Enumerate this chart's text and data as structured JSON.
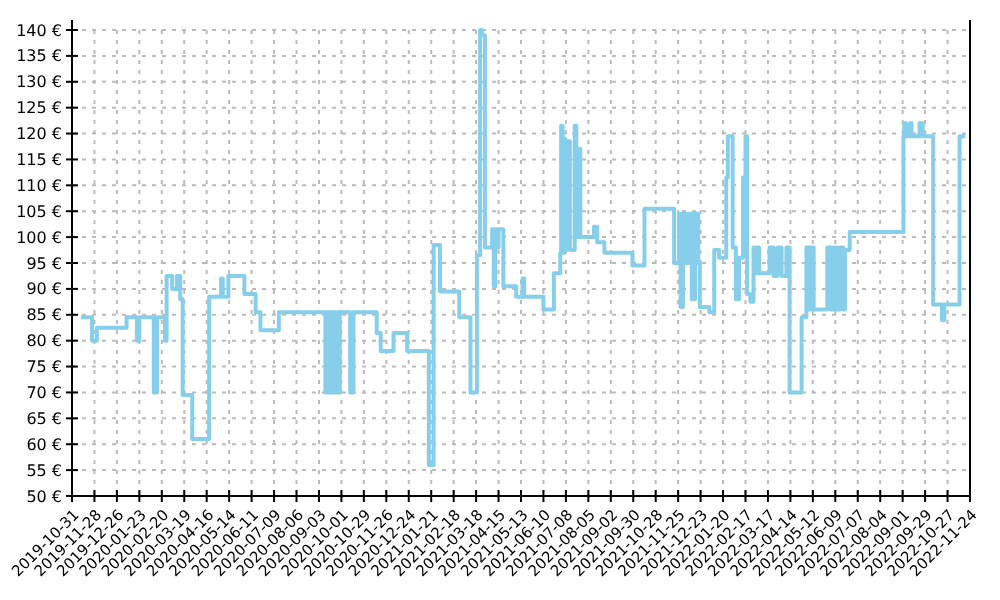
{
  "chart_data": {
    "type": "step",
    "color": "#87ceeb",
    "grid": true,
    "x": [
      "2019-11-11",
      "2019-11-25",
      "2019-12-01",
      "2020-01-07",
      "2020-01-20",
      "2020-01-23",
      "2020-02-10",
      "2020-02-14",
      "2020-02-24",
      "2020-02-26",
      "2020-03-04",
      "2020-03-10",
      "2020-03-14",
      "2020-03-17",
      "2020-03-29",
      "2020-04-19",
      "2020-05-04",
      "2020-05-06",
      "2020-05-13",
      "2020-06-02",
      "2020-06-16",
      "2020-06-22",
      "2020-07-15",
      "2020-09-11",
      "2020-09-13",
      "2020-09-15",
      "2020-09-17",
      "2020-09-19",
      "2020-09-21",
      "2020-09-23",
      "2020-09-25",
      "2020-09-27",
      "2020-09-29",
      "2020-10-12",
      "2020-10-16",
      "2020-11-14",
      "2020-11-19",
      "2020-12-05",
      "2020-12-22",
      "2021-01-18",
      "2021-01-24",
      "2021-02-01",
      "2021-02-25",
      "2021-03-11",
      "2021-03-19",
      "2021-03-23",
      "2021-03-25",
      "2021-03-29",
      "2021-04-07",
      "2021-04-09",
      "2021-04-11",
      "2021-04-13",
      "2021-04-15",
      "2021-04-21",
      "2021-05-07",
      "2021-05-15",
      "2021-05-17",
      "2021-06-10",
      "2021-06-23",
      "2021-07-01",
      "2021-07-02",
      "2021-07-04",
      "2021-07-06",
      "2021-07-07",
      "2021-07-09",
      "2021-07-13",
      "2021-07-19",
      "2021-07-21",
      "2021-07-22",
      "2021-07-24",
      "2021-07-26",
      "2021-08-12",
      "2021-08-16",
      "2021-08-25",
      "2021-09-29",
      "2021-10-14",
      "2021-11-20",
      "2021-11-26",
      "2021-11-28",
      "2021-12-01",
      "2021-12-05",
      "2021-12-08",
      "2021-12-12",
      "2021-12-16",
      "2021-12-20",
      "2021-12-22",
      "2022-01-03",
      "2022-01-09",
      "2022-01-15",
      "2022-01-24",
      "2022-01-26",
      "2022-02-01",
      "2022-02-05",
      "2022-02-09",
      "2022-02-14",
      "2022-02-17",
      "2022-02-19",
      "2022-02-23",
      "2022-02-27",
      "2022-03-01",
      "2022-03-04",
      "2022-03-06",
      "2022-03-19",
      "2022-03-24",
      "2022-03-29",
      "2022-04-03",
      "2022-04-09",
      "2022-04-13",
      "2022-04-28",
      "2022-05-04",
      "2022-05-07",
      "2022-05-09",
      "2022-05-13",
      "2022-05-30",
      "2022-06-03",
      "2022-06-07",
      "2022-06-11",
      "2022-06-15",
      "2022-06-19",
      "2022-06-21",
      "2022-06-27",
      "2022-09-02",
      "2022-09-03",
      "2022-09-05",
      "2022-09-10",
      "2022-09-12",
      "2022-09-22",
      "2022-09-26",
      "2022-10-09",
      "2022-10-20",
      "2022-10-23",
      "2022-11-11",
      "2022-11-18"
    ],
    "values": [
      84.5,
      80,
      82.5,
      84.5,
      80,
      84.5,
      70,
      84.5,
      80,
      92.5,
      90,
      92.5,
      88,
      69.5,
      61,
      88.5,
      92,
      88.5,
      92.5,
      89,
      85.5,
      82,
      85.5,
      70,
      85.5,
      70,
      85.5,
      70,
      85.5,
      70,
      85.5,
      70,
      85.5,
      70,
      85.5,
      81.5,
      78,
      81.5,
      78,
      56,
      98.5,
      89.5,
      84.5,
      70,
      96.5,
      140,
      139,
      98,
      101.5,
      90.5,
      101.5,
      98,
      101.5,
      90.5,
      88.5,
      92,
      88.5,
      86,
      93,
      97,
      121.5,
      97,
      119,
      97.5,
      118.5,
      97.5,
      121.5,
      117,
      100,
      117,
      100,
      102,
      99,
      97,
      94.5,
      105.5,
      95,
      104.5,
      86.5,
      104.5,
      95,
      104.5,
      88,
      104.5,
      95,
      86.5,
      85.5,
      97.5,
      96,
      111.5,
      119.5,
      98,
      88,
      96,
      111.5,
      119.5,
      89,
      87.5,
      98,
      93,
      98,
      93,
      98,
      92.5,
      98,
      92.5,
      98,
      70,
      84.5,
      98,
      86,
      98,
      86,
      98,
      86,
      98,
      86,
      98,
      86,
      97.5,
      101,
      119.5,
      122,
      119.5,
      122,
      119.5,
      122,
      119.5,
      87,
      84,
      87,
      119.5,
      119.5
    ],
    "xlim": [
      "2019-10-31",
      "2022-11-24"
    ],
    "xticks": [
      "2019-10-31",
      "2019-11-28",
      "2019-12-26",
      "2020-01-23",
      "2020-02-20",
      "2020-03-19",
      "2020-04-16",
      "2020-05-14",
      "2020-06-11",
      "2020-07-09",
      "2020-08-06",
      "2020-09-03",
      "2020-10-01",
      "2020-10-29",
      "2020-11-26",
      "2020-12-24",
      "2021-01-21",
      "2021-02-18",
      "2021-03-18",
      "2021-04-15",
      "2021-05-13",
      "2021-06-10",
      "2021-07-08",
      "2021-08-05",
      "2021-09-02",
      "2021-09-30",
      "2021-10-28",
      "2021-11-25",
      "2021-12-23",
      "2022-01-20",
      "2022-02-17",
      "2022-03-17",
      "2022-04-14",
      "2022-05-12",
      "2022-06-09",
      "2022-07-07",
      "2022-08-04",
      "2022-09-01",
      "2022-09-29",
      "2022-10-27",
      "2022-11-24"
    ],
    "ylim": [
      50,
      140
    ],
    "yticks": [
      {
        "value": 50,
        "label": "50 €"
      },
      {
        "value": 55,
        "label": "55 €"
      },
      {
        "value": 60,
        "label": "60 €"
      },
      {
        "value": 65,
        "label": "65 €"
      },
      {
        "value": 70,
        "label": "70 €"
      },
      {
        "value": 75,
        "label": "75 €"
      },
      {
        "value": 80,
        "label": "80 €"
      },
      {
        "value": 85,
        "label": "85 €"
      },
      {
        "value": 90,
        "label": "90 €"
      },
      {
        "value": 95,
        "label": "95 €"
      },
      {
        "value": 100,
        "label": "100 €"
      },
      {
        "value": 105,
        "label": "105 €"
      },
      {
        "value": 110,
        "label": "110 €"
      },
      {
        "value": 115,
        "label": "115 €"
      },
      {
        "value": 120,
        "label": "120 €"
      },
      {
        "value": 125,
        "label": "125 €"
      },
      {
        "value": 130,
        "label": "130 €"
      },
      {
        "value": 135,
        "label": "135 €"
      },
      {
        "value": 140,
        "label": "140 €"
      }
    ]
  }
}
